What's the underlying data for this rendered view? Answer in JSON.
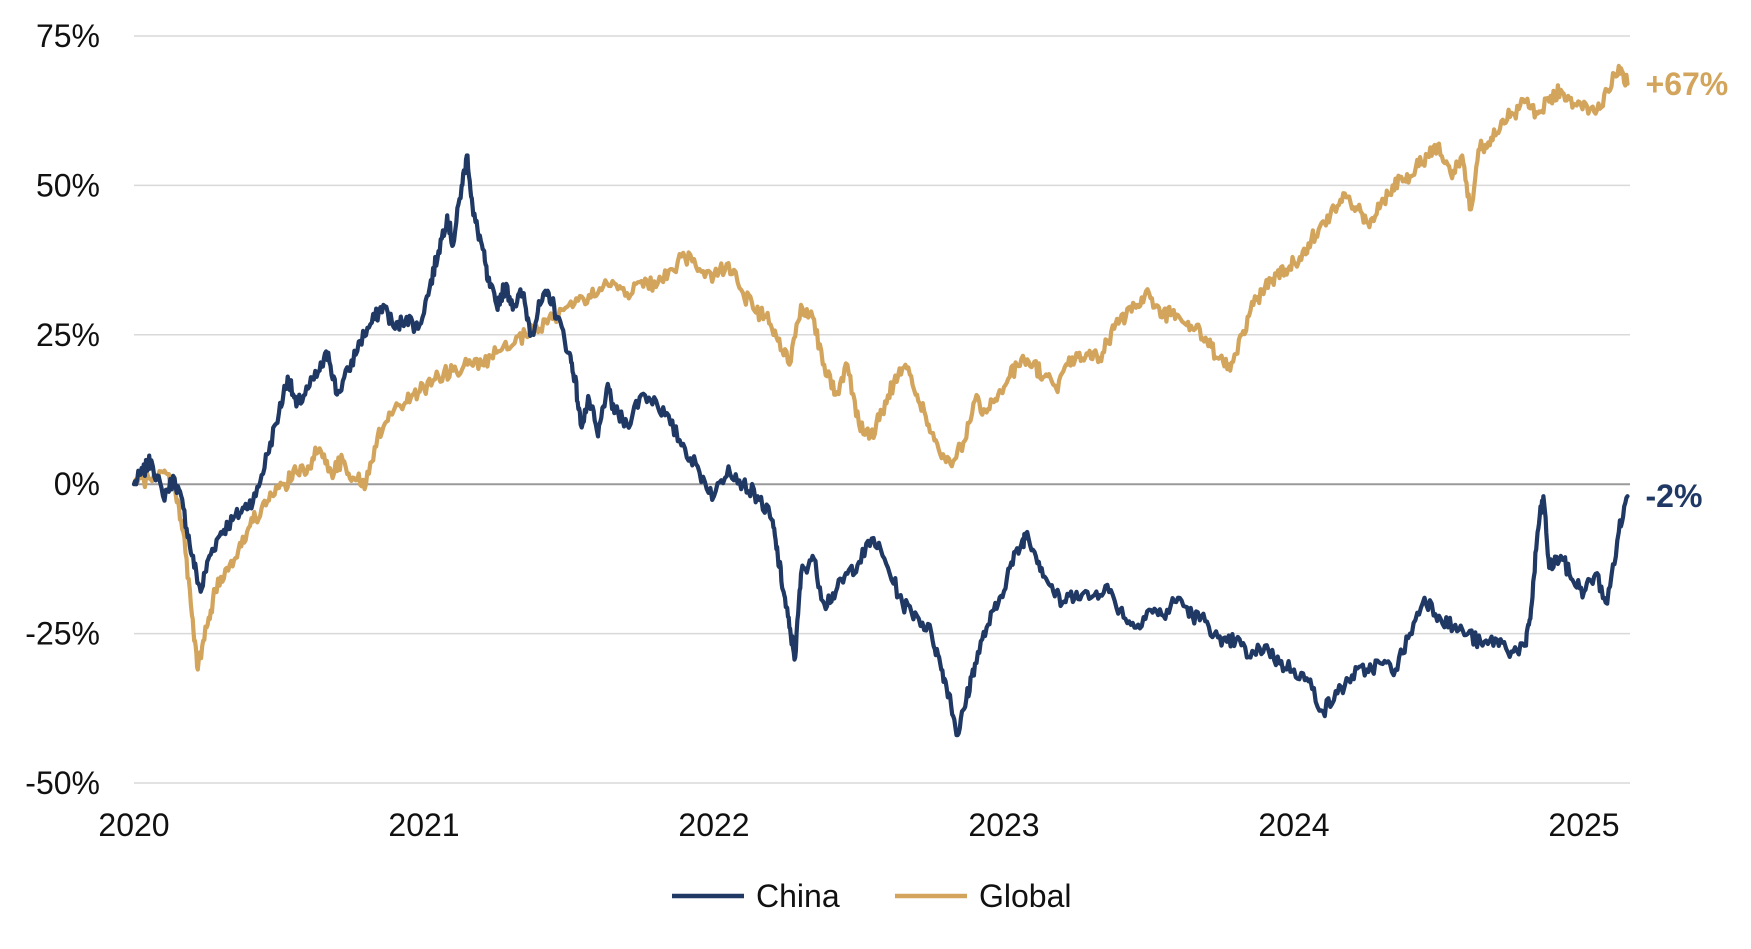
{
  "chart_data": {
    "type": "line",
    "title": "",
    "xlabel": "",
    "ylabel": "",
    "x_ticks": [
      "2020",
      "2021",
      "2022",
      "2023",
      "2024",
      "2025"
    ],
    "y_ticks": [
      "75%",
      "50%",
      "25%",
      "0%",
      "-25%",
      "-50%"
    ],
    "y_tick_values": [
      75,
      50,
      25,
      0,
      -25,
      -50
    ],
    "ylim": [
      -50,
      75
    ],
    "xlim": [
      2020.0,
      2025.15
    ],
    "grid": true,
    "zero_line": true,
    "legend_position": "bottom-center",
    "series": [
      {
        "name": "China",
        "color": "#1f3864",
        "end_label": "-2%",
        "points": [
          [
            2020.0,
            0
          ],
          [
            2020.03,
            2
          ],
          [
            2020.06,
            4
          ],
          [
            2020.1,
            -2
          ],
          [
            2020.14,
            1
          ],
          [
            2020.17,
            -4
          ],
          [
            2020.2,
            -12
          ],
          [
            2020.23,
            -18
          ],
          [
            2020.26,
            -12
          ],
          [
            2020.3,
            -8
          ],
          [
            2020.34,
            -6
          ],
          [
            2020.38,
            -4
          ],
          [
            2020.42,
            -2
          ],
          [
            2020.46,
            5
          ],
          [
            2020.5,
            12
          ],
          [
            2020.53,
            18
          ],
          [
            2020.56,
            13
          ],
          [
            2020.6,
            16
          ],
          [
            2020.64,
            19
          ],
          [
            2020.67,
            22
          ],
          [
            2020.7,
            15
          ],
          [
            2020.74,
            19
          ],
          [
            2020.78,
            24
          ],
          [
            2020.82,
            27
          ],
          [
            2020.86,
            30
          ],
          [
            2020.9,
            26
          ],
          [
            2020.94,
            28
          ],
          [
            2020.98,
            26
          ],
          [
            2021.02,
            33
          ],
          [
            2021.05,
            39
          ],
          [
            2021.08,
            45
          ],
          [
            2021.1,
            40
          ],
          [
            2021.13,
            50
          ],
          [
            2021.15,
            55
          ],
          [
            2021.17,
            45
          ],
          [
            2021.2,
            40
          ],
          [
            2021.22,
            34
          ],
          [
            2021.25,
            30
          ],
          [
            2021.28,
            33
          ],
          [
            2021.31,
            30
          ],
          [
            2021.34,
            32
          ],
          [
            2021.37,
            25
          ],
          [
            2021.4,
            30
          ],
          [
            2021.43,
            32
          ],
          [
            2021.46,
            28
          ],
          [
            2021.5,
            22
          ],
          [
            2021.52,
            18
          ],
          [
            2021.54,
            10
          ],
          [
            2021.57,
            14
          ],
          [
            2021.6,
            8
          ],
          [
            2021.63,
            16
          ],
          [
            2021.66,
            12
          ],
          [
            2021.7,
            10
          ],
          [
            2021.75,
            15
          ],
          [
            2021.8,
            14
          ],
          [
            2021.85,
            10
          ],
          [
            2021.9,
            6
          ],
          [
            2021.95,
            2
          ],
          [
            2022.0,
            -2
          ],
          [
            2022.05,
            3
          ],
          [
            2022.1,
            0
          ],
          [
            2022.15,
            -2
          ],
          [
            2022.2,
            -6
          ],
          [
            2022.22,
            -12
          ],
          [
            2022.24,
            -18
          ],
          [
            2022.26,
            -24
          ],
          [
            2022.28,
            -29
          ],
          [
            2022.3,
            -15
          ],
          [
            2022.34,
            -12
          ],
          [
            2022.38,
            -20
          ],
          [
            2022.42,
            -18
          ],
          [
            2022.46,
            -15
          ],
          [
            2022.5,
            -13
          ],
          [
            2022.55,
            -9
          ],
          [
            2022.6,
            -14
          ],
          [
            2022.65,
            -20
          ],
          [
            2022.7,
            -22
          ],
          [
            2022.75,
            -25
          ],
          [
            2022.78,
            -30
          ],
          [
            2022.81,
            -35
          ],
          [
            2022.84,
            -42
          ],
          [
            2022.87,
            -36
          ],
          [
            2022.9,
            -30
          ],
          [
            2022.94,
            -24
          ],
          [
            2022.98,
            -20
          ],
          [
            2023.02,
            -14
          ],
          [
            2023.06,
            -10
          ],
          [
            2023.08,
            -8
          ],
          [
            2023.12,
            -13
          ],
          [
            2023.16,
            -17
          ],
          [
            2023.2,
            -20
          ],
          [
            2023.25,
            -18
          ],
          [
            2023.3,
            -19
          ],
          [
            2023.35,
            -17
          ],
          [
            2023.4,
            -21
          ],
          [
            2023.45,
            -24
          ],
          [
            2023.5,
            -21
          ],
          [
            2023.55,
            -22
          ],
          [
            2023.6,
            -19
          ],
          [
            2023.65,
            -22
          ],
          [
            2023.7,
            -23
          ],
          [
            2023.75,
            -27
          ],
          [
            2023.8,
            -26
          ],
          [
            2023.85,
            -29
          ],
          [
            2023.9,
            -27
          ],
          [
            2023.95,
            -30
          ],
          [
            2024.0,
            -31
          ],
          [
            2024.05,
            -33
          ],
          [
            2024.1,
            -38
          ],
          [
            2024.15,
            -35
          ],
          [
            2024.2,
            -32
          ],
          [
            2024.25,
            -31
          ],
          [
            2024.3,
            -30
          ],
          [
            2024.35,
            -31
          ],
          [
            2024.4,
            -25
          ],
          [
            2024.45,
            -19
          ],
          [
            2024.5,
            -22
          ],
          [
            2024.55,
            -24
          ],
          [
            2024.6,
            -25
          ],
          [
            2024.65,
            -27
          ],
          [
            2024.7,
            -26
          ],
          [
            2024.75,
            -28
          ],
          [
            2024.8,
            -27
          ],
          [
            2024.82,
            -20
          ],
          [
            2024.84,
            -8
          ],
          [
            2024.86,
            -2
          ],
          [
            2024.88,
            -14
          ],
          [
            2024.92,
            -12
          ],
          [
            2024.96,
            -16
          ],
          [
            2025.0,
            -18
          ],
          [
            2025.04,
            -15
          ],
          [
            2025.08,
            -20
          ],
          [
            2025.12,
            -8
          ],
          [
            2025.15,
            -2
          ]
        ]
      },
      {
        "name": "Global",
        "color": "#d2a45c",
        "end_label": "+67%",
        "points": [
          [
            2020.0,
            0
          ],
          [
            2020.05,
            1
          ],
          [
            2020.1,
            2
          ],
          [
            2020.14,
            0
          ],
          [
            2020.17,
            -8
          ],
          [
            2020.2,
            -22
          ],
          [
            2020.22,
            -31
          ],
          [
            2020.25,
            -24
          ],
          [
            2020.28,
            -18
          ],
          [
            2020.32,
            -14
          ],
          [
            2020.36,
            -11
          ],
          [
            2020.4,
            -7
          ],
          [
            2020.44,
            -4
          ],
          [
            2020.48,
            -2
          ],
          [
            2020.52,
            0
          ],
          [
            2020.56,
            2
          ],
          [
            2020.6,
            3
          ],
          [
            2020.64,
            6
          ],
          [
            2020.68,
            2
          ],
          [
            2020.72,
            4
          ],
          [
            2020.76,
            1
          ],
          [
            2020.8,
            0
          ],
          [
            2020.84,
            8
          ],
          [
            2020.88,
            12
          ],
          [
            2020.92,
            13
          ],
          [
            2020.96,
            15
          ],
          [
            2021.0,
            16
          ],
          [
            2021.05,
            18
          ],
          [
            2021.1,
            19
          ],
          [
            2021.15,
            20
          ],
          [
            2021.2,
            20
          ],
          [
            2021.25,
            22
          ],
          [
            2021.3,
            23
          ],
          [
            2021.35,
            25
          ],
          [
            2021.4,
            26
          ],
          [
            2021.45,
            28
          ],
          [
            2021.5,
            30
          ],
          [
            2021.55,
            31
          ],
          [
            2021.6,
            32
          ],
          [
            2021.65,
            34
          ],
          [
            2021.7,
            32
          ],
          [
            2021.75,
            34
          ],
          [
            2021.8,
            33
          ],
          [
            2021.85,
            36
          ],
          [
            2021.9,
            38
          ],
          [
            2021.95,
            36
          ],
          [
            2022.0,
            35
          ],
          [
            2022.05,
            37
          ],
          [
            2022.1,
            32
          ],
          [
            2022.14,
            29
          ],
          [
            2022.18,
            28
          ],
          [
            2022.22,
            24
          ],
          [
            2022.26,
            20
          ],
          [
            2022.3,
            30
          ],
          [
            2022.34,
            28
          ],
          [
            2022.38,
            20
          ],
          [
            2022.42,
            15
          ],
          [
            2022.46,
            20
          ],
          [
            2022.5,
            10
          ],
          [
            2022.54,
            8
          ],
          [
            2022.58,
            12
          ],
          [
            2022.62,
            17
          ],
          [
            2022.66,
            20
          ],
          [
            2022.7,
            15
          ],
          [
            2022.74,
            10
          ],
          [
            2022.78,
            5
          ],
          [
            2022.82,
            3
          ],
          [
            2022.86,
            7
          ],
          [
            2022.9,
            14
          ],
          [
            2022.94,
            12
          ],
          [
            2022.98,
            15
          ],
          [
            2023.02,
            18
          ],
          [
            2023.06,
            21
          ],
          [
            2023.1,
            20
          ],
          [
            2023.14,
            18
          ],
          [
            2023.18,
            16
          ],
          [
            2023.22,
            20
          ],
          [
            2023.26,
            22
          ],
          [
            2023.3,
            21
          ],
          [
            2023.34,
            22
          ],
          [
            2023.38,
            26
          ],
          [
            2023.42,
            28
          ],
          [
            2023.46,
            30
          ],
          [
            2023.5,
            32
          ],
          [
            2023.54,
            28
          ],
          [
            2023.58,
            29
          ],
          [
            2023.62,
            27
          ],
          [
            2023.66,
            26
          ],
          [
            2023.7,
            24
          ],
          [
            2023.74,
            21
          ],
          [
            2023.78,
            19
          ],
          [
            2023.82,
            25
          ],
          [
            2023.86,
            30
          ],
          [
            2023.9,
            33
          ],
          [
            2023.94,
            35
          ],
          [
            2023.98,
            36
          ],
          [
            2024.02,
            38
          ],
          [
            2024.06,
            41
          ],
          [
            2024.1,
            44
          ],
          [
            2024.14,
            46
          ],
          [
            2024.18,
            48
          ],
          [
            2024.22,
            46
          ],
          [
            2024.26,
            43
          ],
          [
            2024.3,
            47
          ],
          [
            2024.34,
            50
          ],
          [
            2024.38,
            51
          ],
          [
            2024.42,
            53
          ],
          [
            2024.46,
            55
          ],
          [
            2024.5,
            57
          ],
          [
            2024.54,
            52
          ],
          [
            2024.58,
            55
          ],
          [
            2024.61,
            46
          ],
          [
            2024.64,
            56
          ],
          [
            2024.68,
            58
          ],
          [
            2024.72,
            61
          ],
          [
            2024.76,
            62
          ],
          [
            2024.8,
            64
          ],
          [
            2024.84,
            62
          ],
          [
            2024.88,
            64
          ],
          [
            2024.92,
            66
          ],
          [
            2024.96,
            63
          ],
          [
            2025.0,
            64
          ],
          [
            2025.04,
            62
          ],
          [
            2025.08,
            66
          ],
          [
            2025.12,
            70
          ],
          [
            2025.15,
            67
          ]
        ]
      }
    ]
  }
}
